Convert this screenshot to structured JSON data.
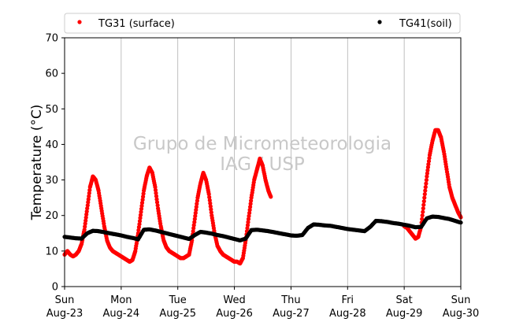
{
  "chart_data": {
    "type": "scatter",
    "ylabel": "Temperature (°C)",
    "ylim": [
      0,
      70
    ],
    "yticks": [
      0,
      10,
      20,
      30,
      40,
      50,
      60,
      70
    ],
    "xlim": [
      0,
      7
    ],
    "xticks": [
      {
        "x": 0,
        "day": "Sun",
        "date": "Aug-23"
      },
      {
        "x": 1,
        "day": "Mon",
        "date": "Aug-24"
      },
      {
        "x": 2,
        "day": "Tue",
        "date": "Aug-25"
      },
      {
        "x": 3,
        "day": "Wed",
        "date": "Aug-26"
      },
      {
        "x": 4,
        "day": "Thu",
        "date": "Aug-27"
      },
      {
        "x": 5,
        "day": "Fri",
        "date": "Aug-28"
      },
      {
        "x": 6,
        "day": "Sat",
        "date": "Aug-29"
      },
      {
        "x": 7,
        "day": "Sun",
        "date": "Aug-30"
      }
    ],
    "grid": "vertical",
    "legend_position": "top",
    "watermark": [
      "Grupo de Micrometeorologia",
      "IAG / USP"
    ],
    "series": [
      {
        "name": "TG31 (surface)",
        "color": "#ff0000",
        "points": [
          [
            0.0,
            9.0
          ],
          [
            0.05,
            10.0
          ],
          [
            0.1,
            9.0
          ],
          [
            0.15,
            8.5
          ],
          [
            0.2,
            9.0
          ],
          [
            0.25,
            10.0
          ],
          [
            0.3,
            12.0
          ],
          [
            0.35,
            16.0
          ],
          [
            0.4,
            22.0
          ],
          [
            0.45,
            28.0
          ],
          [
            0.5,
            31.0
          ],
          [
            0.55,
            30.0
          ],
          [
            0.6,
            27.0
          ],
          [
            0.65,
            22.0
          ],
          [
            0.7,
            17.0
          ],
          [
            0.75,
            13.0
          ],
          [
            0.8,
            11.0
          ],
          [
            0.85,
            10.0
          ],
          [
            0.9,
            9.5
          ],
          [
            0.95,
            9.0
          ],
          [
            1.0,
            8.5
          ],
          [
            1.05,
            8.0
          ],
          [
            1.1,
            7.5
          ],
          [
            1.15,
            7.0
          ],
          [
            1.2,
            7.5
          ],
          [
            1.25,
            10.0
          ],
          [
            1.3,
            15.0
          ],
          [
            1.35,
            21.0
          ],
          [
            1.4,
            27.0
          ],
          [
            1.45,
            31.0
          ],
          [
            1.5,
            33.5
          ],
          [
            1.55,
            32.0
          ],
          [
            1.6,
            28.0
          ],
          [
            1.65,
            22.0
          ],
          [
            1.7,
            17.0
          ],
          [
            1.75,
            13.0
          ],
          [
            1.8,
            11.0
          ],
          [
            1.85,
            10.0
          ],
          [
            1.9,
            9.5
          ],
          [
            1.95,
            9.0
          ],
          [
            2.0,
            8.5
          ],
          [
            2.05,
            8.0
          ],
          [
            2.1,
            8.0
          ],
          [
            2.15,
            8.5
          ],
          [
            2.2,
            9.0
          ],
          [
            2.25,
            13.0
          ],
          [
            2.3,
            19.0
          ],
          [
            2.35,
            25.0
          ],
          [
            2.4,
            29.0
          ],
          [
            2.45,
            32.0
          ],
          [
            2.5,
            30.0
          ],
          [
            2.55,
            26.0
          ],
          [
            2.6,
            20.0
          ],
          [
            2.65,
            15.0
          ],
          [
            2.7,
            11.5
          ],
          [
            2.75,
            10.0
          ],
          [
            2.8,
            9.0
          ],
          [
            2.85,
            8.5
          ],
          [
            2.9,
            8.0
          ],
          [
            2.95,
            7.5
          ],
          [
            3.0,
            7.0
          ],
          [
            3.05,
            7.0
          ],
          [
            3.1,
            6.5
          ],
          [
            3.15,
            8.0
          ],
          [
            3.2,
            13.0
          ],
          [
            3.25,
            19.0
          ],
          [
            3.3,
            25.0
          ],
          [
            3.35,
            30.0
          ],
          [
            3.4,
            33.0
          ],
          [
            3.45,
            36.0
          ],
          [
            3.5,
            34.0
          ],
          [
            3.55,
            30.0
          ],
          [
            3.6,
            27.0
          ],
          [
            3.65,
            25.0
          ],
          [
            6.0,
            17.0
          ],
          [
            6.05,
            16.5
          ],
          [
            6.1,
            15.5
          ],
          [
            6.15,
            14.5
          ],
          [
            6.2,
            13.5
          ],
          [
            6.25,
            14.0
          ],
          [
            6.3,
            17.0
          ],
          [
            6.35,
            24.0
          ],
          [
            6.4,
            31.0
          ],
          [
            6.45,
            37.0
          ],
          [
            6.5,
            41.0
          ],
          [
            6.55,
            44.0
          ],
          [
            6.6,
            44.0
          ],
          [
            6.65,
            42.0
          ],
          [
            6.7,
            38.0
          ],
          [
            6.75,
            33.0
          ],
          [
            6.8,
            28.0
          ],
          [
            6.85,
            25.0
          ],
          [
            6.9,
            23.0
          ],
          [
            6.95,
            21.0
          ],
          [
            7.0,
            19.5
          ]
        ]
      },
      {
        "name": "TG41(soil)",
        "color": "#000000",
        "points": [
          [
            0.0,
            14.0
          ],
          [
            0.1,
            13.8
          ],
          [
            0.2,
            13.6
          ],
          [
            0.3,
            13.5
          ],
          [
            0.4,
            15.0
          ],
          [
            0.5,
            15.7
          ],
          [
            0.6,
            15.6
          ],
          [
            0.7,
            15.3
          ],
          [
            0.8,
            15.0
          ],
          [
            0.9,
            14.7
          ],
          [
            1.0,
            14.4
          ],
          [
            1.1,
            14.0
          ],
          [
            1.2,
            13.7
          ],
          [
            1.3,
            13.3
          ],
          [
            1.4,
            16.0
          ],
          [
            1.5,
            16.1
          ],
          [
            1.6,
            15.8
          ],
          [
            1.7,
            15.4
          ],
          [
            1.8,
            15.0
          ],
          [
            1.9,
            14.6
          ],
          [
            2.0,
            14.2
          ],
          [
            2.1,
            13.8
          ],
          [
            2.2,
            13.4
          ],
          [
            2.3,
            14.5
          ],
          [
            2.4,
            15.4
          ],
          [
            2.5,
            15.2
          ],
          [
            2.6,
            14.9
          ],
          [
            2.7,
            14.5
          ],
          [
            2.8,
            14.2
          ],
          [
            2.9,
            13.8
          ],
          [
            3.0,
            13.4
          ],
          [
            3.1,
            13.0
          ],
          [
            3.2,
            13.5
          ],
          [
            3.3,
            15.9
          ],
          [
            3.4,
            16.0
          ],
          [
            3.5,
            15.8
          ],
          [
            3.6,
            15.6
          ],
          [
            3.7,
            15.3
          ],
          [
            3.8,
            15.0
          ],
          [
            3.9,
            14.7
          ],
          [
            4.0,
            14.4
          ],
          [
            4.1,
            14.3
          ],
          [
            4.2,
            14.5
          ],
          [
            4.3,
            16.5
          ],
          [
            4.4,
            17.5
          ],
          [
            4.5,
            17.4
          ],
          [
            4.6,
            17.2
          ],
          [
            4.7,
            17.1
          ],
          [
            4.8,
            16.8
          ],
          [
            4.9,
            16.5
          ],
          [
            5.0,
            16.2
          ],
          [
            5.1,
            16.0
          ],
          [
            5.2,
            15.8
          ],
          [
            5.3,
            15.6
          ],
          [
            5.4,
            16.8
          ],
          [
            5.5,
            18.5
          ],
          [
            5.6,
            18.4
          ],
          [
            5.7,
            18.2
          ],
          [
            5.8,
            17.9
          ],
          [
            5.9,
            17.7
          ],
          [
            6.0,
            17.4
          ],
          [
            6.1,
            17.1
          ],
          [
            6.2,
            16.7
          ],
          [
            6.3,
            16.8
          ],
          [
            6.4,
            19.2
          ],
          [
            6.5,
            19.7
          ],
          [
            6.6,
            19.6
          ],
          [
            6.7,
            19.3
          ],
          [
            6.8,
            19.0
          ],
          [
            6.9,
            18.5
          ],
          [
            7.0,
            18.0
          ]
        ]
      }
    ]
  }
}
